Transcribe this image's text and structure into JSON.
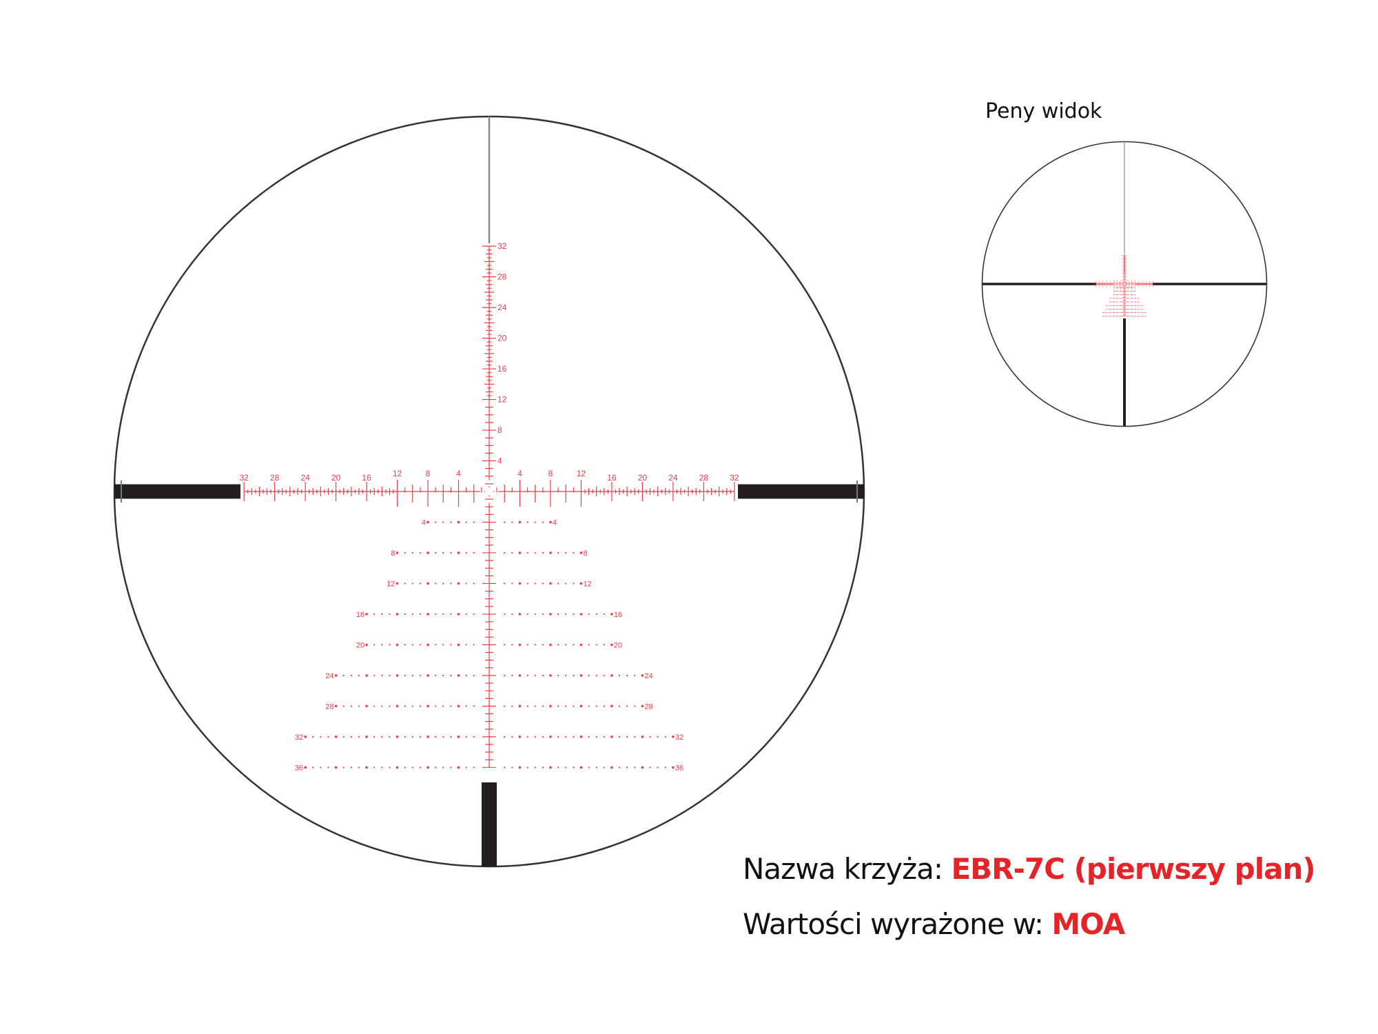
{
  "mini_view": {
    "title": "Peny widok"
  },
  "info": {
    "reticle_label": "Nazwa krzyża:",
    "reticle_name": "EBR-7C (pierwszy plan)",
    "units_label": "Wartości wyrażone w:",
    "units_value": "MOA"
  },
  "reticle": {
    "unit": "MOA",
    "reticle_color": "#ef3b45",
    "post_color": "#231f20",
    "circle_color": "#333333",
    "horizontal_labels": [
      4,
      8,
      12,
      16,
      20,
      24,
      28,
      32
    ],
    "vertical_up_labels": [
      4,
      8,
      12,
      16,
      20,
      24,
      28,
      32
    ],
    "dot_rows": [
      {
        "level": 4,
        "extent": 8
      },
      {
        "level": 8,
        "extent": 12
      },
      {
        "level": 12,
        "extent": 12
      },
      {
        "level": 16,
        "extent": 16
      },
      {
        "level": 20,
        "extent": 16
      },
      {
        "level": 24,
        "extent": 20
      },
      {
        "level": 28,
        "extent": 20
      },
      {
        "level": 32,
        "extent": 24
      },
      {
        "level": 36,
        "extent": 24
      }
    ]
  }
}
